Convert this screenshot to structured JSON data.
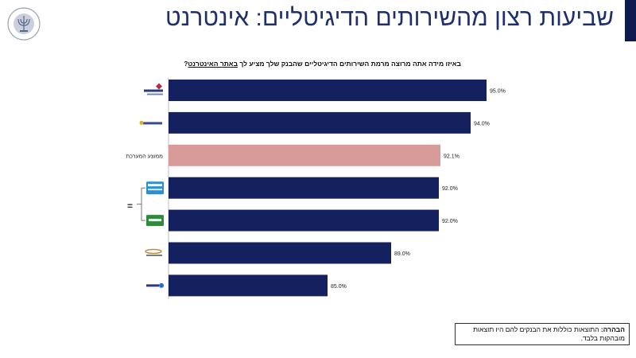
{
  "slide": {
    "title": "שביעות רצון מהשירותים הדיגיטליים: אינטרנט",
    "question_prefix": "באיזו מידה אתה מרוצה מרמת השירותים הדיגיטליים שהבנק שלך מציע לך ",
    "question_emph": "באתר האינטרנט",
    "question_suffix": "?",
    "equal_sign": "=",
    "note_label": "הבהרה:",
    "note_text": " התוצאות כוללות את הבנקים להם היו תוצאות מובהקות בלבד."
  },
  "colors": {
    "bar": "#14215e",
    "highlight": "#d99a9a",
    "brand_bar": "#0e1b4d"
  },
  "chart_data": {
    "type": "bar",
    "orientation": "horizontal",
    "categories": [
      "Discount",
      "Hapoalim",
      "ממוצע המערכת",
      "Leumi",
      "Mizrahi-Tefahot",
      "First International",
      "Yahav"
    ],
    "category_icons": [
      "discount-logo-icon",
      "hapoalim-logo-icon",
      "",
      "leumi-logo-icon",
      "mizrahi-logo-icon",
      "first-international-logo-icon",
      "yahav-logo-icon"
    ],
    "values": [
      95.0,
      94.0,
      92.1,
      92.0,
      92.0,
      89.0,
      85.0
    ],
    "value_labels": [
      "95.0%",
      "94.0%",
      "92.1%",
      "92.0%",
      "92.0%",
      "89.0%",
      "85.0%"
    ],
    "highlight_index": 2,
    "xlim": [
      75,
      95.0
    ],
    "grid": false,
    "legend": "none"
  }
}
